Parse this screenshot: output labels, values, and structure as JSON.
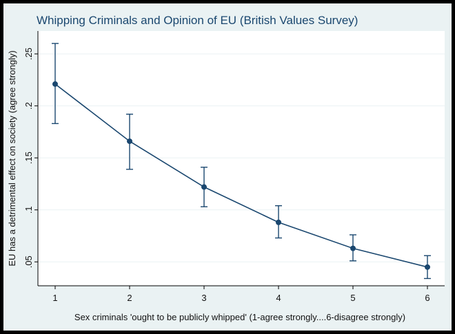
{
  "chart_data": {
    "type": "line",
    "title": "Whipping Criminals and Opinion of EU (British Values Survey)",
    "xlabel": "Sex criminals 'ought to be publicly whipped' (1-agree strongly....6-disagree strongly)",
    "ylabel": "EU has a detrimental effect on society (agree strongly)",
    "x": [
      1,
      2,
      3,
      4,
      5,
      6
    ],
    "series": [
      {
        "values": [
          0.221,
          0.166,
          0.122,
          0.088,
          0.063,
          0.045
        ],
        "ci_low": [
          0.183,
          0.139,
          0.103,
          0.073,
          0.051,
          0.034
        ],
        "ci_high": [
          0.26,
          0.192,
          0.141,
          0.104,
          0.076,
          0.056
        ]
      }
    ],
    "xticks": [
      1,
      2,
      3,
      4,
      5,
      6
    ],
    "xtick_labels": [
      "1",
      "2",
      "3",
      "4",
      "5",
      "6"
    ],
    "yticks": [
      0.05,
      0.1,
      0.15,
      0.2,
      0.25
    ],
    "ytick_labels": [
      ".05",
      ".1",
      ".15",
      ".2",
      ".25"
    ],
    "xlim": [
      1,
      6
    ],
    "ylim": [
      0.027,
      0.272
    ],
    "grid": true,
    "colors": {
      "line": "#1A476F",
      "background": "#EAF2F3",
      "plot_background": "#FFFFFF",
      "grid": "#EAF2F3",
      "border": "#000000"
    }
  }
}
